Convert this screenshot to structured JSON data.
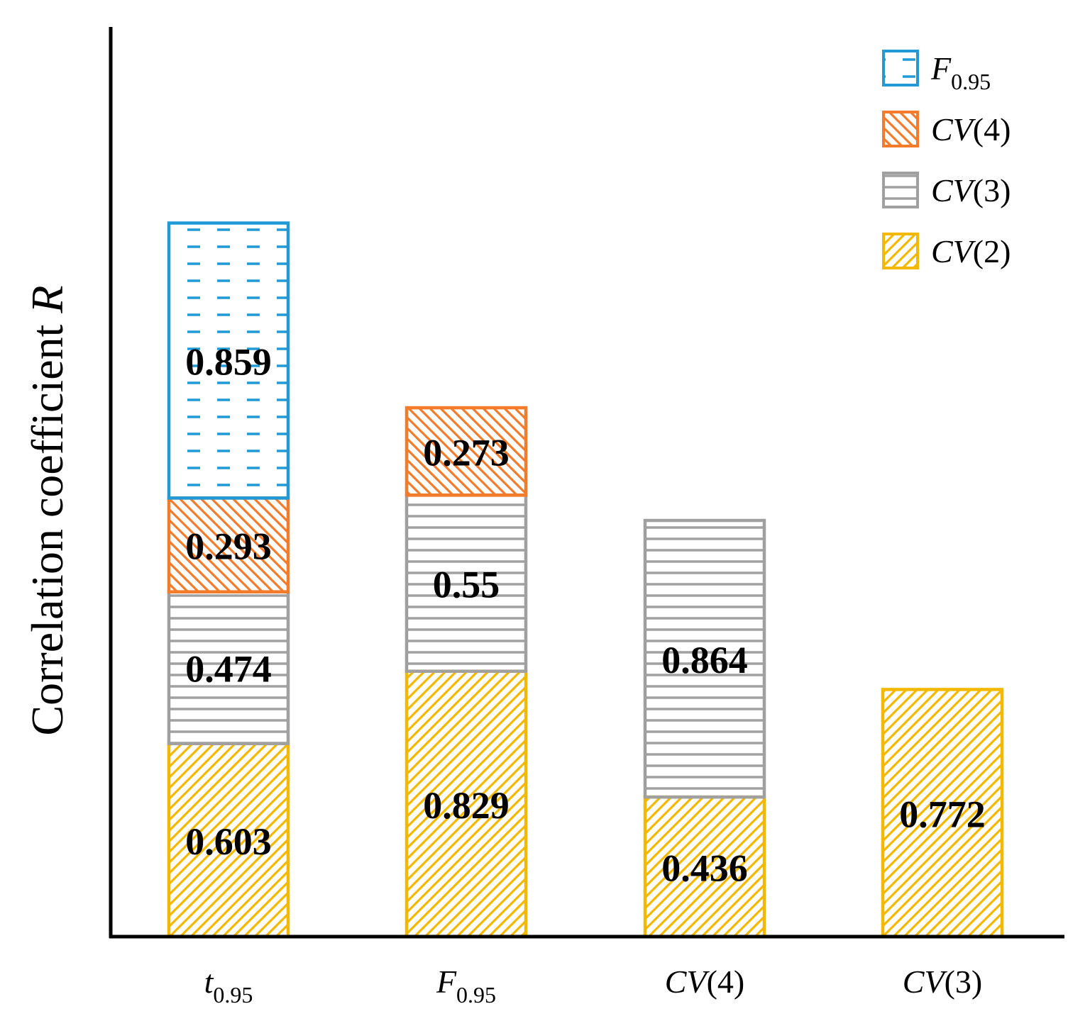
{
  "colors": {
    "F0.95": "#1f9ad6",
    "CV(4)": "#f47b29",
    "CV(3)": "#a0a0a0",
    "CV(2)": "#f5b800"
  },
  "chart_data": {
    "type": "bar",
    "stacked": true,
    "title": "",
    "xlabel": "",
    "ylabel": "Correlation coefficient R",
    "ylabel_parts": {
      "text": "Correlation coefficient ",
      "italic": "R"
    },
    "categories": [
      {
        "main": "t",
        "sub": "0.95",
        "italic_main": true,
        "suffix": ""
      },
      {
        "main": "F",
        "sub": "0.95",
        "italic_main": true,
        "suffix": ""
      },
      {
        "main": "CV",
        "sub": "",
        "italic_main": true,
        "suffix": "(4)"
      },
      {
        "main": "CV",
        "sub": "",
        "italic_main": true,
        "suffix": "(3)"
      }
    ],
    "series": [
      {
        "name": "CV(2)",
        "label": {
          "main": "CV",
          "sub": "",
          "suffix": "(2)"
        },
        "pattern": "diag-up",
        "values": [
          0.603,
          0.829,
          0.436,
          0.772
        ]
      },
      {
        "name": "CV(3)",
        "label": {
          "main": "CV",
          "sub": "",
          "suffix": "(3)"
        },
        "pattern": "horizontal",
        "values": [
          0.474,
          0.55,
          0.864,
          null
        ]
      },
      {
        "name": "CV(4)",
        "label": {
          "main": "CV",
          "sub": "",
          "suffix": "(4)"
        },
        "pattern": "diag-down",
        "values": [
          0.293,
          0.273,
          null,
          null
        ]
      },
      {
        "name": "F0.95",
        "label": {
          "main": "F",
          "sub": "0.95",
          "suffix": ""
        },
        "pattern": "dashed",
        "values": [
          0.859,
          null,
          null,
          null
        ]
      }
    ],
    "ylim": [
      0,
      2.5
    ],
    "grid": false,
    "legend": "top-right"
  }
}
